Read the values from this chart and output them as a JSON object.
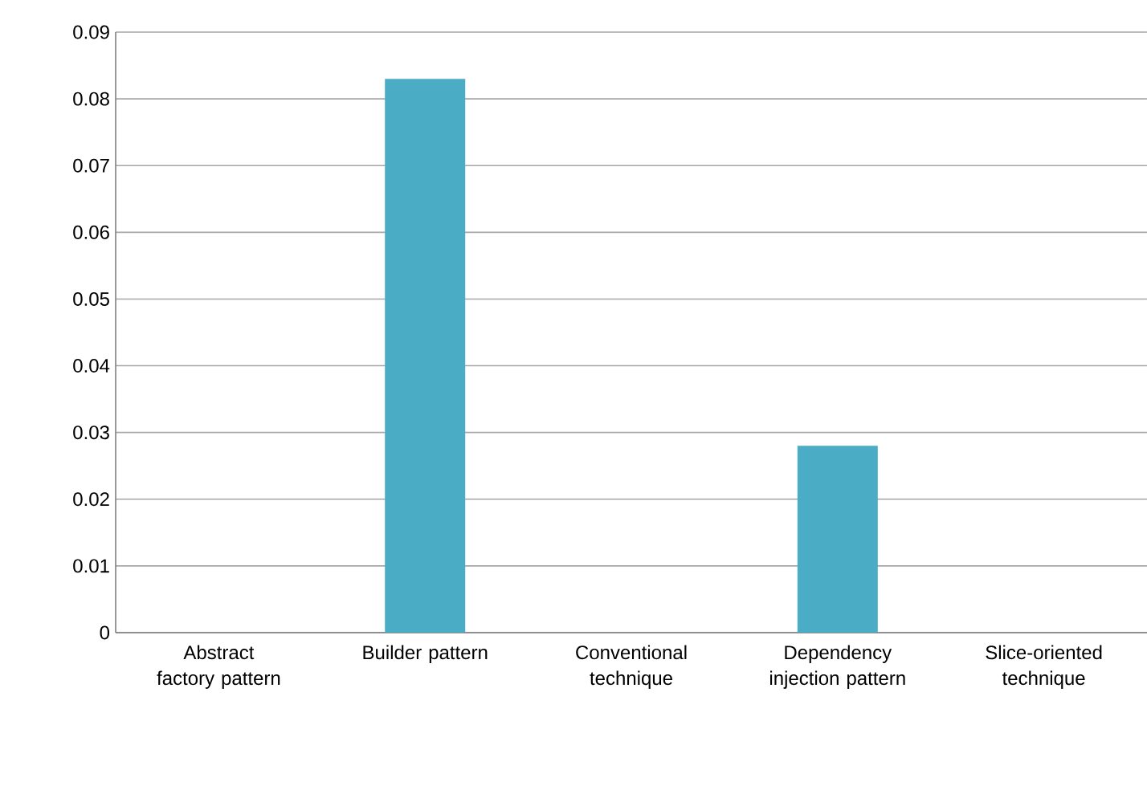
{
  "chart_data": {
    "type": "bar",
    "categories": [
      "Abstract factory pattern",
      "Builder pattern",
      "Conventional technique",
      "Dependency injection pattern",
      "Slice-oriented technique"
    ],
    "values": [
      0,
      0.083,
      0,
      0.028,
      0
    ],
    "color": "#4bacc6",
    "ylim": [
      0,
      0.09
    ],
    "yticks": [
      0,
      0.01,
      0.02,
      0.03,
      0.04,
      0.05,
      0.06,
      0.07,
      0.08,
      0.09
    ],
    "grid": "y"
  }
}
